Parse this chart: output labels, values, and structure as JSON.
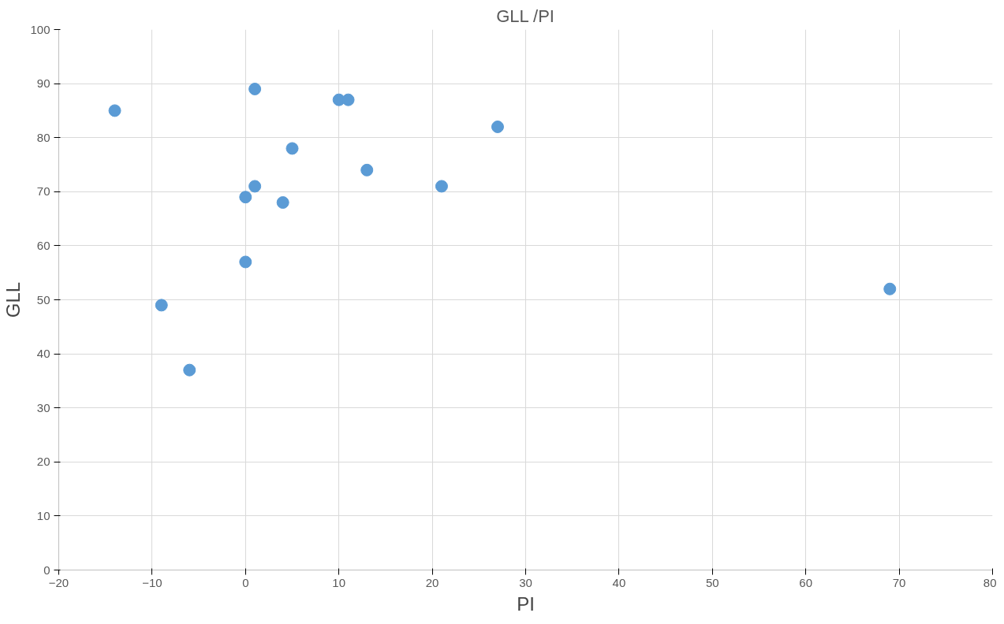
{
  "chart_data": {
    "type": "scatter",
    "title": "GLL /PI",
    "xlabel": "PI",
    "ylabel": "GLL",
    "x": [
      -14,
      1,
      10,
      11,
      27,
      5,
      13,
      1,
      21,
      0,
      4,
      0,
      -9,
      -6,
      69
    ],
    "series": [
      {
        "color": "#5b9bd5",
        "values": [
          85,
          89,
          87,
          87,
          82,
          78,
          74,
          71,
          71,
          69,
          68,
          57,
          49,
          37,
          52
        ]
      }
    ],
    "xlim": [
      -20,
      80
    ],
    "xticks": [
      -20,
      -10,
      0,
      10,
      20,
      30,
      40,
      50,
      60,
      70,
      80
    ],
    "ylim": [
      0,
      100
    ],
    "yticks": [
      0,
      10,
      20,
      30,
      40,
      50,
      60,
      70,
      80,
      90,
      100
    ],
    "grid": true,
    "marker": "circle"
  }
}
